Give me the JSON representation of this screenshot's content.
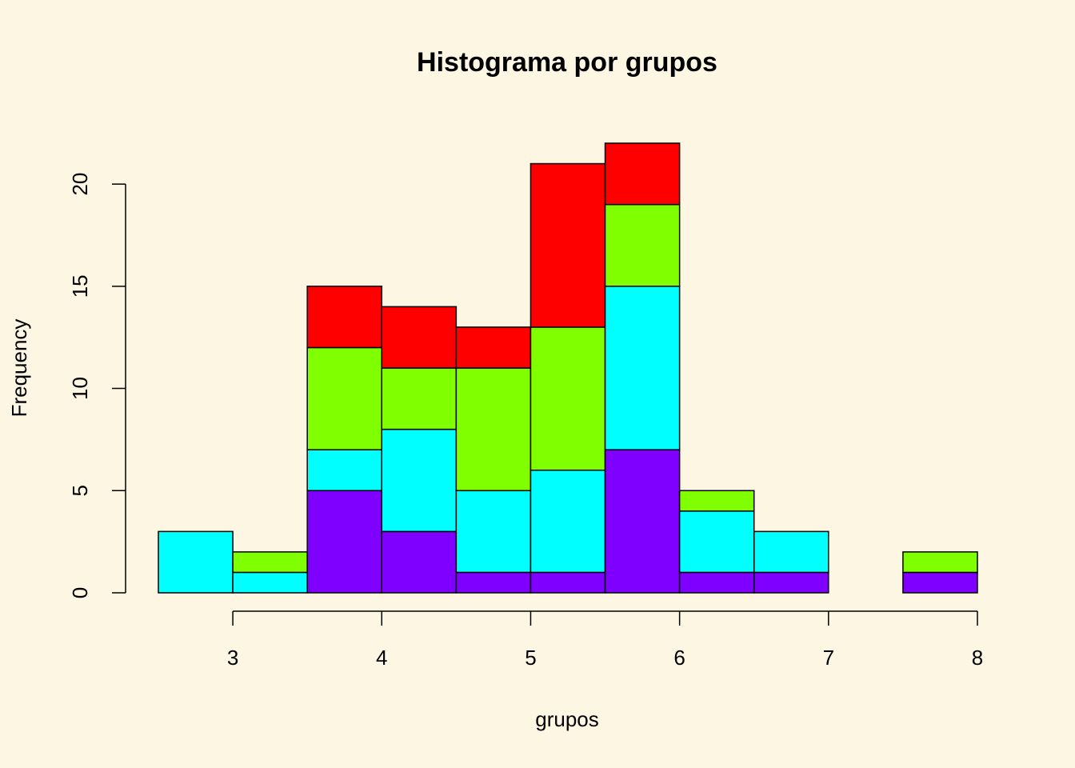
{
  "chart_data": {
    "type": "histogram",
    "title": "Histograma por grupos",
    "x_label": "grupos",
    "y_label": "Frequency",
    "bins": [
      2.5,
      3,
      3.5,
      4,
      4.5,
      5,
      5.5,
      6,
      6.5,
      7,
      7.5,
      8
    ],
    "stacked": true,
    "series": [
      {
        "color": "#8000FF",
        "values": [
          0,
          0,
          5,
          3,
          1,
          1,
          7,
          1,
          1,
          0,
          1
        ]
      },
      {
        "color": "#00FFFF",
        "values": [
          3,
          1,
          2,
          5,
          4,
          5,
          8,
          3,
          2,
          0,
          0
        ]
      },
      {
        "color": "#80FF00",
        "values": [
          0,
          1,
          5,
          3,
          6,
          7,
          4,
          1,
          0,
          0,
          1
        ]
      },
      {
        "color": "#FF0000",
        "values": [
          0,
          0,
          3,
          3,
          2,
          8,
          3,
          0,
          0,
          0,
          0
        ]
      }
    ],
    "xlim": [
      2.5,
      8
    ],
    "xticks": [
      3,
      4,
      5,
      6,
      7,
      8
    ],
    "ylim": [
      0,
      22
    ],
    "yticks": [
      0,
      5,
      10,
      15,
      20
    ],
    "grid": false
  }
}
